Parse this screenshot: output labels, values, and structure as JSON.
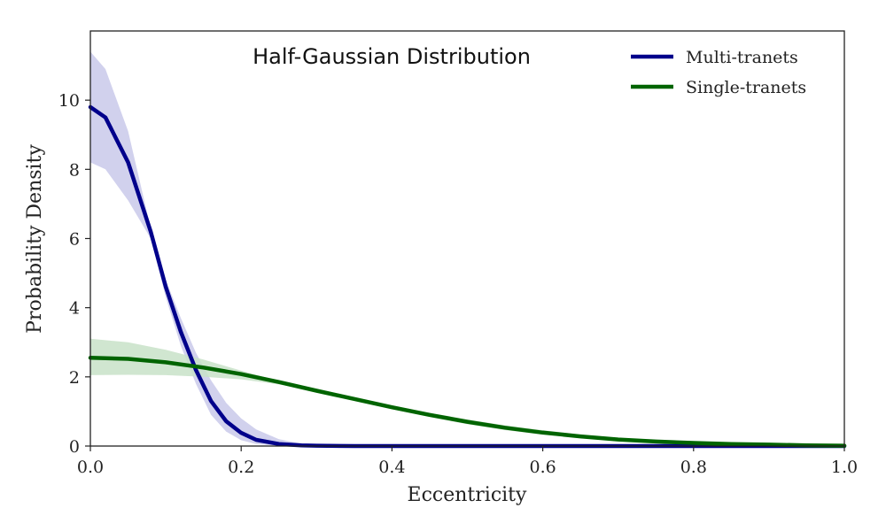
{
  "chart_data": {
    "type": "line",
    "title": "Half-Gaussian Distribution",
    "xlabel": "Eccentricity",
    "ylabel": "Probability Density",
    "xlim": [
      0.0,
      1.0
    ],
    "ylim": [
      0,
      12
    ],
    "xticks": [
      "0.0",
      "0.2",
      "0.4",
      "0.6",
      "0.8",
      "1.0"
    ],
    "yticks": [
      "0",
      "2",
      "4",
      "6",
      "8",
      "10"
    ],
    "grid": false,
    "legend_position": "top-right",
    "series": [
      {
        "name": "Multi-tranets",
        "color": "#00008b",
        "band_color": "#c9c9ea",
        "x": [
          0.0,
          0.02,
          0.05,
          0.08,
          0.1,
          0.12,
          0.14,
          0.16,
          0.18,
          0.2,
          0.22,
          0.25,
          0.28,
          0.3,
          0.35,
          0.4,
          0.5,
          0.6,
          0.8,
          1.0
        ],
        "y": [
          9.8,
          9.5,
          8.2,
          6.2,
          4.6,
          3.3,
          2.2,
          1.3,
          0.72,
          0.38,
          0.18,
          0.06,
          0.02,
          0.01,
          0.0,
          0.0,
          0.0,
          0.0,
          0.0,
          0.0
        ],
        "upper": [
          11.4,
          10.9,
          9.1,
          6.3,
          4.8,
          3.7,
          2.7,
          1.9,
          1.25,
          0.8,
          0.48,
          0.2,
          0.07,
          0.03,
          0.01,
          0.0,
          0.0,
          0.0,
          0.0,
          0.0
        ],
        "lower": [
          8.2,
          8.0,
          7.1,
          6.0,
          4.3,
          2.9,
          1.8,
          0.9,
          0.42,
          0.17,
          0.06,
          0.01,
          0.0,
          0.0,
          0.0,
          0.0,
          0.0,
          0.0,
          0.0,
          0.0
        ]
      },
      {
        "name": "Single-tranets",
        "color": "#006400",
        "band_color": "#c8e2c8",
        "x": [
          0.0,
          0.05,
          0.1,
          0.15,
          0.2,
          0.25,
          0.3,
          0.35,
          0.4,
          0.45,
          0.5,
          0.55,
          0.6,
          0.65,
          0.7,
          0.75,
          0.8,
          0.85,
          0.9,
          0.95,
          1.0
        ],
        "y": [
          2.55,
          2.52,
          2.42,
          2.27,
          2.08,
          1.85,
          1.6,
          1.36,
          1.12,
          0.9,
          0.7,
          0.53,
          0.39,
          0.28,
          0.19,
          0.13,
          0.09,
          0.06,
          0.04,
          0.02,
          0.01
        ],
        "upper": [
          3.1,
          3.0,
          2.78,
          2.5,
          2.18,
          1.88,
          1.6,
          1.38,
          1.17,
          0.96,
          0.77,
          0.6,
          0.46,
          0.33,
          0.23,
          0.16,
          0.11,
          0.07,
          0.05,
          0.03,
          0.02
        ],
        "lower": [
          2.05,
          2.06,
          2.05,
          2.0,
          1.93,
          1.78,
          1.58,
          1.33,
          1.07,
          0.84,
          0.63,
          0.46,
          0.33,
          0.23,
          0.15,
          0.1,
          0.06,
          0.04,
          0.02,
          0.01,
          0.0
        ]
      }
    ]
  }
}
